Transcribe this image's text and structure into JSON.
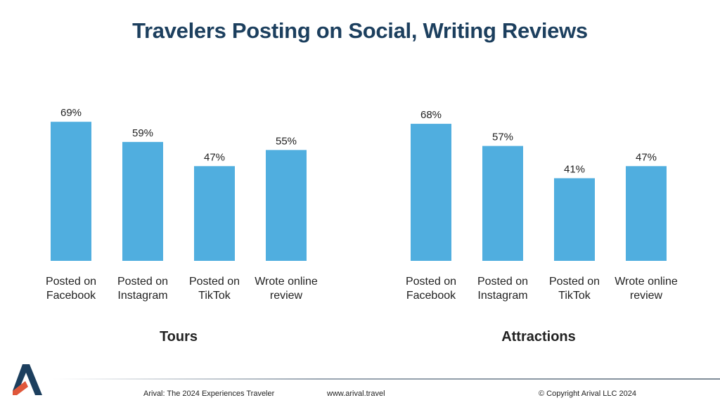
{
  "title": "Travelers Posting on Social, Writing Reviews",
  "chart_data": [
    {
      "type": "bar",
      "group_label": "Tours",
      "categories": [
        [
          "Posted on",
          "Facebook"
        ],
        [
          "Posted on",
          "Instagram"
        ],
        [
          "Posted on",
          "TikTok"
        ],
        [
          "Wrote online",
          "review"
        ]
      ],
      "values": [
        69,
        59,
        47,
        55
      ],
      "value_labels": [
        "69%",
        "59%",
        "47%",
        "55%"
      ],
      "ylim": [
        0,
        75
      ],
      "grid": false,
      "color": "#50aedf"
    },
    {
      "type": "bar",
      "group_label": "Attractions",
      "categories": [
        [
          "Posted on",
          "Facebook"
        ],
        [
          "Posted on",
          "Instagram"
        ],
        [
          "Posted on",
          "TikTok"
        ],
        [
          "Wrote online",
          "review"
        ]
      ],
      "values": [
        68,
        57,
        41,
        47
      ],
      "value_labels": [
        "68%",
        "57%",
        "41%",
        "47%"
      ],
      "ylim": [
        0,
        75
      ],
      "grid": false,
      "color": "#50aedf"
    }
  ],
  "footer": {
    "left": "Arival: The 2024 Experiences Traveler",
    "middle": "www.arival.travel",
    "right": "© Copyright Arival LLC 2024"
  },
  "logo": {
    "icon": "arival-logo-icon",
    "colors": [
      "#1c3f5e",
      "#e0573a"
    ]
  }
}
